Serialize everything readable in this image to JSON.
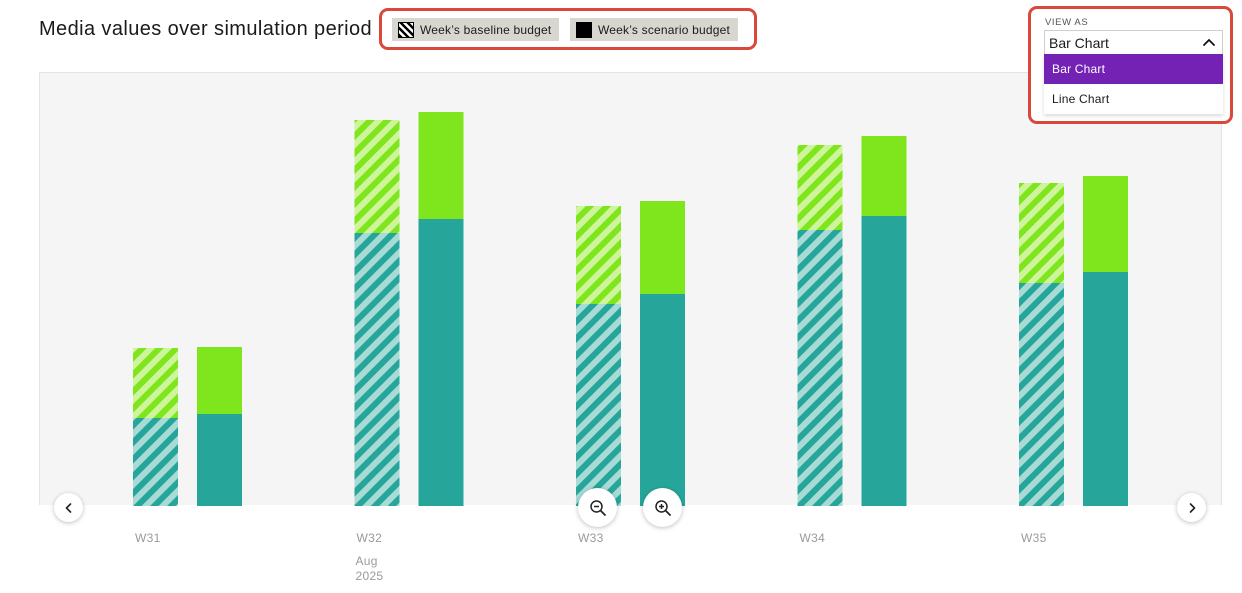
{
  "title": "Media values over simulation period",
  "legend": {
    "baseline_label": "Week’s baseline budget",
    "scenario_label": "Week’s scenario budget"
  },
  "view_as": {
    "label": "VIEW AS",
    "selected": "Bar Chart",
    "options": [
      "Bar Chart",
      "Line Chart"
    ],
    "selected_color": "#7422b3"
  },
  "colors": {
    "teal": "#26a69a",
    "lime": "#7fe51c",
    "highlight_border": "#d9483b",
    "plot_background": "#f5f5f5"
  },
  "icons": {
    "prev": "chevron-left-icon",
    "next": "chevron-right-icon",
    "zoom_out": "zoom-out-icon",
    "zoom_in": "zoom-in-icon",
    "dropdown": "chevron-up-icon"
  },
  "chart_data": {
    "type": "bar",
    "stacked": true,
    "grouped": true,
    "categories": [
      "W31",
      "W32",
      "W33",
      "W34",
      "W35"
    ],
    "x_sublabels": [
      "",
      "Aug 2025",
      "",
      "",
      ""
    ],
    "groups": [
      {
        "name": "Week’s baseline budget",
        "pattern": "hatched",
        "stack": [
          {
            "color": "#26a69a",
            "values": [
              88,
              273,
              202,
              276,
              223
            ]
          },
          {
            "color": "#7fe51c",
            "values": [
              70,
              113,
              98,
              85,
              100
            ]
          }
        ]
      },
      {
        "name": "Week’s scenario budget",
        "pattern": "solid",
        "stack": [
          {
            "color": "#26a69a",
            "values": [
              92,
              287,
              212,
              290,
              234
            ]
          },
          {
            "color": "#7fe51c",
            "values": [
              67,
              107,
              93,
              80,
              96
            ]
          }
        ]
      }
    ],
    "ylim": [
      0,
      433
    ],
    "y_axis_visible": false,
    "grid": false,
    "legend_position": "top"
  }
}
